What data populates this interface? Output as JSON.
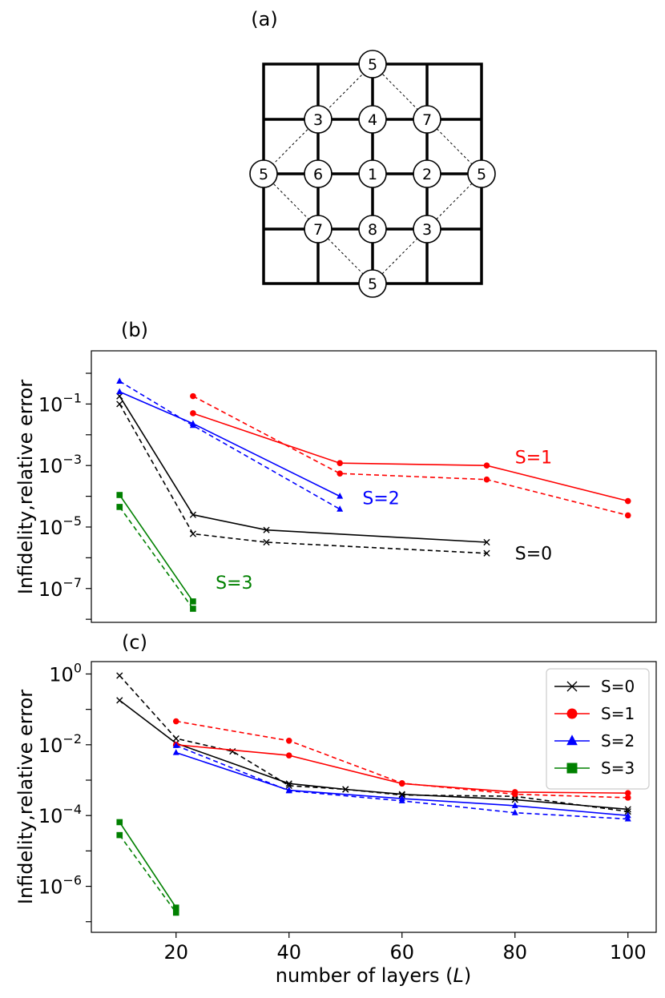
{
  "lattice": {
    "label": "(a)",
    "nodes": [
      "5",
      "3",
      "4",
      "7",
      "5",
      "6",
      "1",
      "2",
      "5",
      "7",
      "8",
      "3",
      "5"
    ]
  },
  "chart_data": [
    {
      "type": "line",
      "label": "(b)",
      "ylabel": "Infidelity,relative error",
      "yscale": "log",
      "xlim": [
        5,
        105
      ],
      "ylim_log10": [
        -8.1,
        0.73
      ],
      "yticks": [
        {
          "exp": -1,
          "label": "10",
          "sup": "−1"
        },
        {
          "exp": -3,
          "label": "10",
          "sup": "−3"
        },
        {
          "exp": -5,
          "label": "10",
          "sup": "−5"
        },
        {
          "exp": -7,
          "label": "10",
          "sup": "−7"
        }
      ],
      "series": [
        {
          "name": "S=0",
          "color": "#000000",
          "marker": "x",
          "solid": {
            "x": [
              10,
              23,
              36,
              75
            ],
            "y": [
              0.18,
              2.5e-05,
              8e-06,
              3.2e-06
            ]
          },
          "dashed": {
            "x": [
              10,
              23,
              36,
              75
            ],
            "y": [
              0.1,
              6e-06,
              3.2e-06,
              1.4e-06
            ]
          }
        },
        {
          "name": "S=1",
          "color": "#ff0000",
          "marker": "circle",
          "solid": {
            "x": [
              23,
              49,
              75,
              100
            ],
            "y": [
              0.05,
              0.0012,
              0.001,
              7e-05
            ]
          },
          "dashed": {
            "x": [
              23,
              49,
              75,
              100
            ],
            "y": [
              0.18,
              0.00055,
              0.00035,
              2.4e-05
            ]
          }
        },
        {
          "name": "S=2",
          "color": "#0000ff",
          "marker": "triangle",
          "solid": {
            "x": [
              10,
              23,
              49
            ],
            "y": [
              0.25,
              0.023,
              0.0001
            ]
          },
          "dashed": {
            "x": [
              10,
              23,
              49
            ],
            "y": [
              0.55,
              0.02,
              3.8e-05
            ]
          }
        },
        {
          "name": "S=3",
          "color": "#008000",
          "marker": "square",
          "solid": {
            "x": [
              10,
              23
            ],
            "y": [
              0.00011,
              3.8e-08
            ]
          },
          "dashed": {
            "x": [
              10,
              23
            ],
            "y": [
              4.5e-05,
              2.2e-08
            ]
          }
        }
      ],
      "annotations": [
        {
          "text": "S=1",
          "x": 80,
          "logy": -2.72,
          "color": "#ff0000"
        },
        {
          "text": "S=2",
          "x": 53,
          "logy": -4.05,
          "color": "#0000ff"
        },
        {
          "text": "S=0",
          "x": 80,
          "logy": -5.85,
          "color": "#000000"
        },
        {
          "text": "S=3",
          "x": 27,
          "logy": -6.8,
          "color": "#008000"
        }
      ]
    },
    {
      "type": "line",
      "label": "(c)",
      "xlabel": "number of layers (",
      "xlabel_var": "L",
      "xlabel_end": ")",
      "ylabel": "Infidelity,relative error",
      "yscale": "log",
      "xlim": [
        5,
        105
      ],
      "ylim_log10": [
        -7.3,
        0.35
      ],
      "xticks": [
        20,
        40,
        60,
        80,
        100
      ],
      "yticks": [
        {
          "exp": 0,
          "label": "10",
          "sup": "0"
        },
        {
          "exp": -2,
          "label": "10",
          "sup": "−2"
        },
        {
          "exp": -4,
          "label": "10",
          "sup": "−4"
        },
        {
          "exp": -6,
          "label": "10",
          "sup": "−6"
        }
      ],
      "legend_position": "top-right",
      "series": [
        {
          "name": "S=0",
          "color": "#000000",
          "marker": "x",
          "solid": {
            "x": [
              10,
              20,
              40,
              50,
              60,
              80,
              100
            ],
            "y": [
              0.18,
              0.011,
              0.0008,
              0.00055,
              0.0004,
              0.00028,
              0.00015
            ]
          },
          "dashed": {
            "x": [
              10,
              20,
              30,
              40,
              50,
              60,
              80,
              100
            ],
            "y": [
              0.9,
              0.015,
              0.0065,
              0.0007,
              0.00055,
              0.00038,
              0.00035,
              0.00013
            ]
          }
        },
        {
          "name": "S=1",
          "color": "#ff0000",
          "marker": "circle",
          "solid": {
            "x": [
              20,
              40,
              60,
              80,
              100
            ],
            "y": [
              0.01,
              0.005,
              0.0008,
              0.00046,
              0.00043
            ]
          },
          "dashed": {
            "x": [
              20,
              40,
              60,
              80,
              100
            ],
            "y": [
              0.046,
              0.013,
              0.00082,
              0.0004,
              0.00032
            ]
          }
        },
        {
          "name": "S=2",
          "color": "#0000ff",
          "marker": "triangle",
          "solid": {
            "x": [
              20,
              40,
              60,
              80,
              100
            ],
            "y": [
              0.006,
              0.00052,
              0.0003,
              0.00019,
              0.0001
            ]
          },
          "dashed": {
            "x": [
              20,
              40,
              60,
              80,
              100
            ],
            "y": [
              0.0095,
              0.0005,
              0.00026,
              0.00012,
              8e-05
            ]
          }
        },
        {
          "name": "S=3",
          "color": "#008000",
          "marker": "square",
          "solid": {
            "x": [
              10,
              20
            ],
            "y": [
              6.5e-05,
              2.5e-07
            ]
          },
          "dashed": {
            "x": [
              10,
              20
            ],
            "y": [
              2.8e-05,
              1.8e-07
            ]
          }
        }
      ],
      "legend": [
        "S=0",
        "S=1",
        "S=2",
        "S=3"
      ]
    }
  ]
}
